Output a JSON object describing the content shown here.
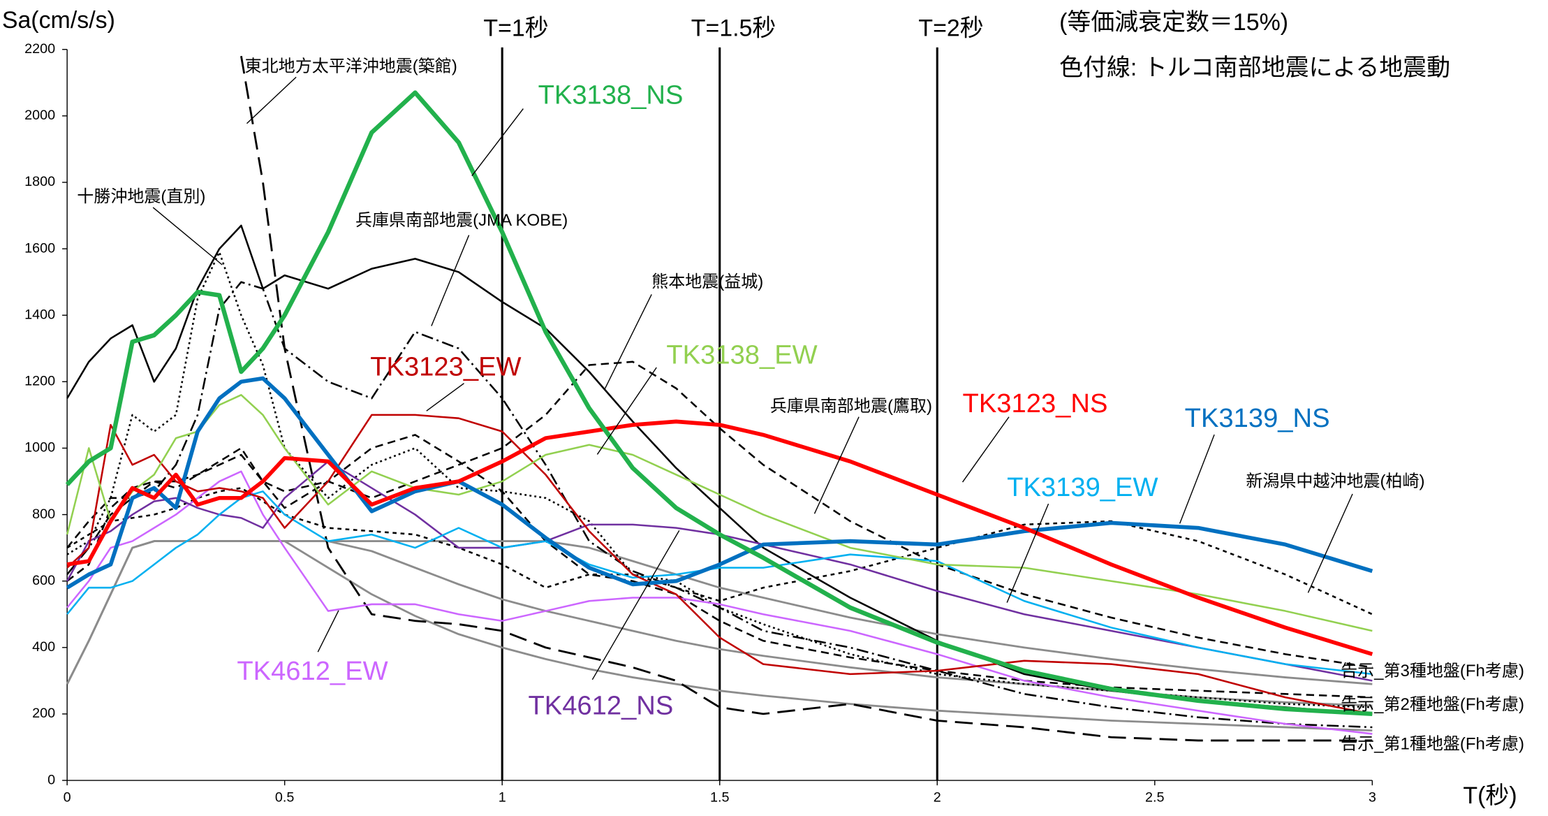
{
  "chart_data": {
    "type": "line",
    "y_label": "Sa(cm/s/s)",
    "x_label": "T(秒)",
    "notes": [
      "(等価減衰定数＝15%)",
      "色付線: トルコ南部地震による地震動"
    ],
    "xlim": [
      0,
      3
    ],
    "xticks": [
      0,
      0.5,
      1,
      1.5,
      2,
      2.5,
      3
    ],
    "ylim": [
      0,
      2200
    ],
    "yticks": [
      0,
      200,
      400,
      600,
      800,
      1000,
      1200,
      1400,
      1600,
      1800,
      2000,
      2200
    ],
    "markers": [
      {
        "value": 1,
        "label": "T=1秒"
      },
      {
        "value": 1.5,
        "label": "T=1.5秒"
      },
      {
        "value": 2,
        "label": "T=2秒"
      }
    ],
    "x": [
      0,
      0.05,
      0.1,
      0.15,
      0.2,
      0.25,
      0.3,
      0.35,
      0.4,
      0.45,
      0.5,
      0.6,
      0.7,
      0.8,
      0.9,
      1.0,
      1.1,
      1.2,
      1.3,
      1.4,
      1.5,
      1.6,
      1.8,
      2.0,
      2.2,
      2.4,
      2.6,
      2.8,
      3.0
    ],
    "series": [
      {
        "name": "告示_第3種地盤(Fh考慮)",
        "color": "#8c8c8c",
        "style": "solid",
        "width": 2,
        "values": [
          290,
          420,
          560,
          700,
          720,
          720,
          720,
          720,
          720,
          720,
          720,
          720,
          720,
          720,
          720,
          720,
          720,
          700,
          660,
          620,
          580,
          550,
          490,
          440,
          400,
          365,
          335,
          310,
          290
        ]
      },
      {
        "name": "告示_第2種地盤(Fh考慮)",
        "color": "#8c8c8c",
        "style": "solid",
        "width": 2,
        "values": [
          290,
          420,
          560,
          700,
          720,
          720,
          720,
          720,
          720,
          720,
          720,
          720,
          690,
          640,
          590,
          545,
          510,
          480,
          450,
          420,
          395,
          375,
          340,
          310,
          290,
          270,
          250,
          235,
          225
        ]
      },
      {
        "name": "告示_第1種地盤(Fh考慮)",
        "color": "#8c8c8c",
        "style": "solid",
        "width": 2,
        "values": [
          290,
          420,
          560,
          700,
          720,
          720,
          720,
          720,
          720,
          720,
          720,
          640,
          560,
          495,
          440,
          400,
          365,
          335,
          310,
          290,
          270,
          255,
          230,
          210,
          195,
          180,
          170,
          160,
          150
        ]
      },
      {
        "color": "#000000",
        "style": "solid",
        "width": 1.8,
        "values": [
          1150,
          1260,
          1330,
          1370,
          1200,
          1300,
          1480,
          1600,
          1670,
          1480,
          1520,
          1480,
          1540,
          1570,
          1530,
          1440,
          1360,
          1230,
          1080,
          940,
          820,
          700,
          550,
          420,
          320,
          270,
          240,
          220,
          200
        ]
      },
      {
        "name": "東北地方太平洋沖地震(築館)",
        "color": "#000000",
        "style": "long-dash",
        "width": 2,
        "values": [
          null,
          null,
          null,
          null,
          null,
          null,
          null,
          null,
          2180,
          1800,
          1300,
          700,
          500,
          480,
          470,
          450,
          400,
          370,
          340,
          300,
          220,
          200,
          230,
          180,
          160,
          130,
          120,
          120,
          120
        ]
      },
      {
        "name": "十勝沖地震(直別)",
        "color": "#000000",
        "style": "dot",
        "width": 1.8,
        "values": [
          680,
          720,
          850,
          1100,
          1050,
          1100,
          1450,
          1590,
          1400,
          1250,
          1000,
          850,
          950,
          1000,
          880,
          870,
          850,
          780,
          620,
          600,
          520,
          470,
          380,
          320,
          290,
          270,
          250,
          230,
          220
        ]
      },
      {
        "name": "兵庫県南部地震(JMA KOBE)",
        "color": "#000000",
        "style": "dash-dot",
        "width": 1.8,
        "values": [
          620,
          700,
          800,
          850,
          870,
          950,
          1100,
          1420,
          1500,
          1480,
          1300,
          1200,
          1150,
          1350,
          1300,
          1150,
          950,
          720,
          630,
          580,
          520,
          450,
          400,
          330,
          260,
          220,
          190,
          170,
          160
        ]
      },
      {
        "name": "熊本地震(益城)",
        "color": "#000000",
        "style": "dash",
        "width": 1.8,
        "values": [
          600,
          650,
          820,
          880,
          900,
          900,
          920,
          950,
          980,
          900,
          820,
          900,
          1000,
          1040,
          960,
          870,
          720,
          620,
          600,
          560,
          480,
          420,
          370,
          330,
          300,
          280,
          270,
          260,
          250
        ]
      },
      {
        "name": "兵庫県南部地震(鷹取)",
        "color": "#000000",
        "style": "dash",
        "width": 1.8,
        "values": [
          700,
          780,
          850,
          850,
          900,
          880,
          920,
          960,
          1000,
          900,
          870,
          900,
          850,
          900,
          950,
          1000,
          1100,
          1250,
          1260,
          1180,
          1060,
          950,
          780,
          650,
          560,
          490,
          430,
          380,
          340
        ]
      },
      {
        "name": "新潟県中越沖地震(柏崎)",
        "color": "#000000",
        "style": "short-dash",
        "width": 1.8,
        "values": [
          700,
          740,
          780,
          790,
          800,
          820,
          850,
          870,
          880,
          840,
          800,
          760,
          750,
          740,
          700,
          650,
          580,
          620,
          620,
          580,
          540,
          580,
          630,
          700,
          770,
          780,
          720,
          620,
          500
        ]
      },
      {
        "name": "TK4612_EW",
        "color": "#cc66ff",
        "style": "solid",
        "width": 1.8,
        "values": [
          520,
          600,
          700,
          720,
          760,
          800,
          850,
          900,
          930,
          800,
          700,
          510,
          530,
          530,
          500,
          480,
          510,
          540,
          550,
          550,
          530,
          500,
          450,
          380,
          300,
          250,
          210,
          170,
          140
        ]
      },
      {
        "name": "TK4612_NS",
        "color": "#7030a0",
        "style": "solid",
        "width": 1.8,
        "values": [
          600,
          720,
          750,
          800,
          840,
          850,
          820,
          800,
          790,
          760,
          850,
          960,
          880,
          800,
          700,
          700,
          720,
          770,
          770,
          760,
          740,
          710,
          650,
          570,
          500,
          450,
          400,
          350,
          300
        ]
      },
      {
        "name": "TK3139_EW",
        "color": "#00b0f0",
        "style": "solid",
        "width": 1.8,
        "values": [
          500,
          580,
          580,
          600,
          650,
          700,
          740,
          800,
          850,
          870,
          800,
          720,
          740,
          700,
          760,
          700,
          720,
          650,
          610,
          620,
          640,
          640,
          680,
          660,
          540,
          460,
          400,
          350,
          320
        ]
      },
      {
        "name": "TK3123_EW",
        "color": "#c00000",
        "style": "solid",
        "width": 1.8,
        "values": [
          640,
          700,
          1070,
          950,
          980,
          900,
          870,
          880,
          870,
          850,
          760,
          900,
          1100,
          1100,
          1090,
          1050,
          920,
          750,
          620,
          560,
          430,
          350,
          320,
          330,
          360,
          350,
          320,
          250,
          200
        ]
      },
      {
        "name": "TK3138_EW",
        "color": "#92d050",
        "style": "solid",
        "width": 1.8,
        "values": [
          740,
          1000,
          780,
          870,
          920,
          1030,
          1050,
          1130,
          1160,
          1100,
          1000,
          830,
          930,
          880,
          860,
          900,
          980,
          1010,
          980,
          920,
          860,
          800,
          700,
          650,
          640,
          600,
          560,
          510,
          450
        ]
      },
      {
        "name": "TK3139_NS",
        "color": "#0070c0",
        "style": "solid",
        "width": 4,
        "values": [
          580,
          620,
          650,
          850,
          880,
          820,
          1050,
          1150,
          1200,
          1210,
          1150,
          980,
          810,
          870,
          900,
          830,
          730,
          640,
          590,
          600,
          650,
          710,
          720,
          710,
          750,
          775,
          760,
          710,
          630
        ]
      },
      {
        "name": "TK3123_NS",
        "color": "#ff0000",
        "style": "solid",
        "width": 4,
        "values": [
          650,
          660,
          780,
          880,
          850,
          920,
          830,
          850,
          850,
          900,
          970,
          960,
          830,
          880,
          900,
          960,
          1030,
          1050,
          1070,
          1080,
          1070,
          1040,
          960,
          860,
          760,
          650,
          550,
          460,
          380
        ]
      },
      {
        "name": "TK3138_NS",
        "color": "#22b14c",
        "style": "solid",
        "width": 4.5,
        "values": [
          890,
          960,
          1000,
          1320,
          1340,
          1400,
          1470,
          1460,
          1230,
          1300,
          1400,
          1650,
          1950,
          2070,
          1920,
          1650,
          1350,
          1120,
          940,
          820,
          740,
          670,
          520,
          415,
          330,
          275,
          240,
          215,
          200
        ]
      }
    ]
  }
}
